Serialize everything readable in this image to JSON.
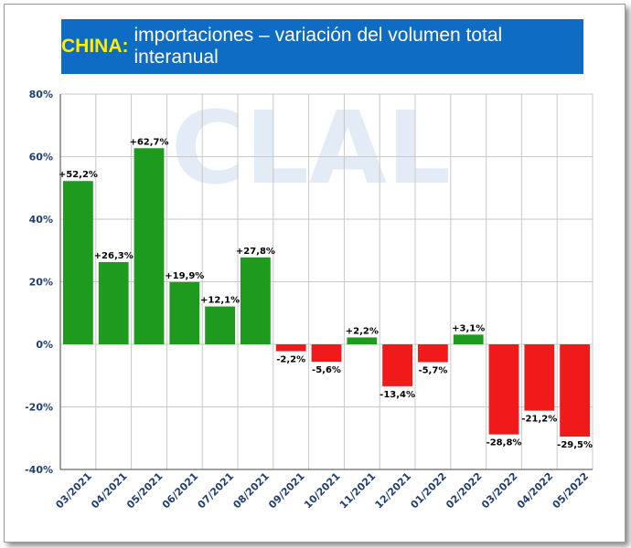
{
  "header": {
    "title_accent": "CHINA:",
    "title_text": "importaciones – variación del volumen total interanual"
  },
  "watermark": "CLAL",
  "colors": {
    "title_bg": "#0f6cc4",
    "title_accent": "#ffee00",
    "positive": "#1e9a1e",
    "negative": "#f01a1a",
    "axis_text": "#1f3f73",
    "watermark": "#e3ebf6"
  },
  "chart_data": {
    "type": "bar",
    "categories": [
      "03/2021",
      "04/2021",
      "05/2021",
      "06/2021",
      "07/2021",
      "08/2021",
      "09/2021",
      "10/2021",
      "11/2021",
      "12/2021",
      "01/2022",
      "02/2022",
      "03/2022",
      "04/2022",
      "05/2022"
    ],
    "values": [
      52.2,
      26.3,
      62.7,
      19.9,
      12.1,
      27.8,
      -2.2,
      -5.6,
      2.2,
      -13.4,
      -5.7,
      3.1,
      -28.8,
      -21.2,
      -29.5
    ],
    "data_labels": [
      "+52,2%",
      "+26,3%",
      "+62,7%",
      "+19,9%",
      "+12,1%",
      "+27,8%",
      "-2,2%",
      "-5,6%",
      "+2,2%",
      "-13,4%",
      "-5,7%",
      "+3,1%",
      "-28,8%",
      "-21,2%",
      "-29,5%"
    ],
    "yticks": [
      80,
      60,
      40,
      20,
      0,
      -20,
      -40
    ],
    "ytick_labels": [
      "80%",
      "60%",
      "40%",
      "20%",
      "0%",
      "-20%",
      "-40%"
    ],
    "ylim": [
      -40,
      80
    ],
    "xlabel": "",
    "ylabel": "",
    "grid": true,
    "legend": "none"
  }
}
